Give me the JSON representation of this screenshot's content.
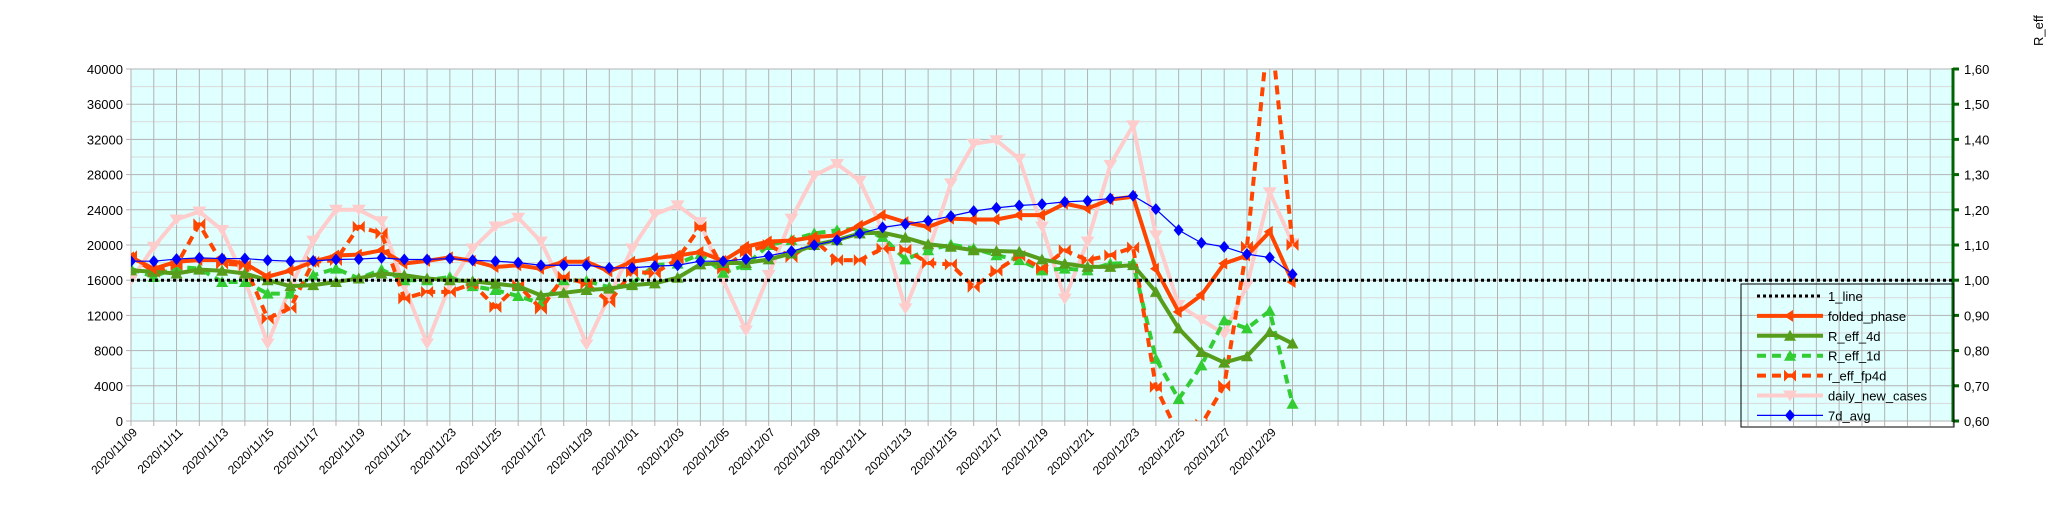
{
  "chart_data": {
    "type": "line",
    "title": "",
    "xlabel": "",
    "ylabel": "",
    "y2label": "R_eff",
    "ylim": [
      0,
      40000
    ],
    "y2lim": [
      0.6,
      1.6
    ],
    "grid": true,
    "legend_position": "bottom-right",
    "total_category_slots": 80,
    "y_ticks": [
      "0",
      "4000",
      "8000",
      "12000",
      "16000",
      "20000",
      "24000",
      "28000",
      "32000",
      "36000",
      "40000"
    ],
    "y2_ticks": [
      "0,60",
      "0,70",
      "0,80",
      "0,90",
      "1,00",
      "1,10",
      "1,20",
      "1,30",
      "1,40",
      "1,50",
      "1,60"
    ],
    "x_tick_labels": [
      "2020/11/09",
      "2020/11/11",
      "2020/11/13",
      "2020/11/15",
      "2020/11/17",
      "2020/11/19",
      "2020/11/21",
      "2020/11/23",
      "2020/11/25",
      "2020/11/27",
      "2020/11/29",
      "2020/12/01",
      "2020/12/03",
      "2020/12/05",
      "2020/12/07",
      "2020/12/09",
      "2020/12/11",
      "2020/12/13",
      "2020/12/15",
      "2020/12/17",
      "2020/12/19",
      "2020/12/21",
      "2020/12/23",
      "2020/12/25",
      "2020/12/27",
      "2020/12/29"
    ],
    "x_label_every": 2,
    "series": [
      {
        "name": "1_line",
        "axis": "right",
        "color": "#000000",
        "style": "dotted",
        "marker": "none",
        "values": "constant",
        "constant": 1.0
      },
      {
        "name": "folded_phase",
        "axis": "left",
        "color": "#ff4500",
        "style": "solid",
        "marker": "arrow-left",
        "values": [
          18600,
          17300,
          18100,
          18300,
          18300,
          17900,
          16400,
          17100,
          18100,
          18800,
          18900,
          19400,
          17900,
          18200,
          18600,
          18200,
          17500,
          17700,
          17300,
          18100,
          18100,
          17000,
          18100,
          18500,
          18800,
          19200,
          18200,
          19800,
          20400,
          20500,
          20900,
          21100,
          22200,
          23400,
          22600,
          22060,
          23000,
          22900,
          22900,
          23400,
          23400,
          24700,
          24150,
          25170,
          25480,
          17300,
          12400,
          14300,
          17900,
          18800,
          21500,
          15800
        ]
      },
      {
        "name": "R_eff_4d",
        "axis": "right",
        "color": "#579d1c",
        "style": "solid",
        "marker": "triangle-up",
        "values": [
          1.028,
          1.024,
          1.019,
          1.03,
          1.027,
          1.019,
          1.0,
          0.983,
          0.986,
          0.995,
          1.005,
          1.019,
          1.014,
          1.005,
          1.0,
          0.997,
          0.99,
          0.983,
          0.957,
          0.964,
          0.972,
          0.976,
          0.986,
          0.991,
          1.007,
          1.045,
          1.049,
          1.049,
          1.059,
          1.076,
          1.1,
          1.114,
          1.133,
          1.135,
          1.121,
          1.102,
          1.095,
          1.085,
          1.083,
          1.081,
          1.059,
          1.047,
          1.038,
          1.038,
          1.043,
          0.967,
          0.863,
          0.796,
          0.766,
          0.784,
          0.853,
          0.82
        ]
      },
      {
        "name": "R_eff_1d",
        "axis": "right",
        "color": "#33cc33",
        "style": "dashed",
        "marker": "triangle-up",
        "values": [
          1.033,
          1.009,
          1.038,
          1.033,
          0.995,
          0.995,
          0.962,
          0.962,
          1.014,
          1.033,
          1.005,
          1.03,
          1.0,
          1.0,
          1.009,
          0.983,
          0.972,
          0.955,
          0.934,
          1.0,
          0.998,
          0.98,
          0.99,
          1.043,
          1.047,
          1.074,
          1.021,
          1.043,
          1.1,
          1.114,
          1.133,
          1.142,
          1.147,
          1.123,
          1.059,
          1.085,
          1.101,
          1.09,
          1.071,
          1.057,
          1.028,
          1.033,
          1.028,
          1.047,
          1.049,
          0.777,
          0.662,
          0.758,
          0.886,
          0.863,
          0.913,
          0.649
        ]
      },
      {
        "name": "r_eff_fp4d",
        "axis": "right",
        "color": "#ff4500",
        "style": "dashed",
        "marker": "bowtie",
        "values": [
          1.068,
          1.024,
          1.043,
          1.159,
          1.047,
          1.043,
          0.891,
          0.921,
          1.052,
          1.057,
          1.152,
          1.133,
          0.948,
          0.967,
          0.967,
          0.99,
          0.924,
          0.986,
          0.919,
          1.01,
          0.99,
          0.938,
          1.024,
          1.02,
          1.06,
          1.152,
          1.033,
          1.081,
          1.1,
          1.066,
          1.114,
          1.057,
          1.057,
          1.09,
          1.087,
          1.049,
          1.045,
          0.981,
          1.027,
          1.069,
          1.033,
          1.085,
          1.057,
          1.071,
          1.093,
          0.697,
          0.56,
          0.59,
          0.7,
          1.095,
          1.75,
          1.1
        ]
      },
      {
        "name": "daily_new_cases",
        "axis": "left",
        "color": "#ffcccc",
        "style": "solid",
        "marker": "triangle-down",
        "values": [
          16000,
          19800,
          22900,
          23800,
          21700,
          16000,
          8800,
          15200,
          20500,
          24000,
          24000,
          22700,
          15300,
          8800,
          15500,
          19600,
          22100,
          23100,
          20400,
          15000,
          8700,
          14200,
          19600,
          23500,
          24500,
          22600,
          16000,
          10300,
          16600,
          23000,
          27900,
          29200,
          27300,
          21700,
          12800,
          19200,
          27000,
          31500,
          31900,
          29800,
          22100,
          13900,
          20400,
          29100,
          33600,
          21100,
          13200,
          11500,
          9900,
          15400,
          26000,
          20200
        ]
      },
      {
        "name": "7d_avg",
        "axis": "left",
        "color": "#0000ff",
        "style": "thin",
        "marker": "diamond",
        "values": [
          18160,
          18160,
          18400,
          18540,
          18460,
          18460,
          18270,
          18160,
          18200,
          18350,
          18400,
          18540,
          18350,
          18350,
          18460,
          18270,
          18160,
          18000,
          17700,
          17700,
          17700,
          17400,
          17400,
          17600,
          17700,
          18160,
          18160,
          18400,
          18770,
          19300,
          19980,
          20550,
          21300,
          22000,
          22370,
          22750,
          23280,
          23850,
          24220,
          24490,
          24640,
          24900,
          25020,
          25290,
          25590,
          24070,
          21690,
          20240,
          19790,
          18960,
          18580,
          16680
        ]
      }
    ]
  }
}
